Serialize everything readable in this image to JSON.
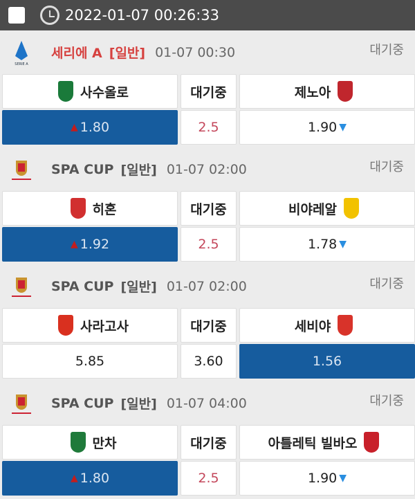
{
  "header": {
    "datetime": "2022-01-07 00:26:33"
  },
  "matches": [
    {
      "league": "세리에 A",
      "type": "[일반]",
      "time": "01-07 00:30",
      "status": "대기중",
      "highlight": true,
      "league_icon": "serie-a-logo",
      "home": "사수올로",
      "home_crest": "#1a7a3a",
      "draw_label": "대기중",
      "away": "제노아",
      "away_crest": "#c0262d",
      "home_odds": "1.80",
      "home_arrow": "up",
      "line": "2.5",
      "away_odds": "1.90",
      "away_arrow": "down",
      "selected": "home"
    },
    {
      "league": "SPA CUP",
      "type": "[일반]",
      "time": "01-07 02:00",
      "status": "대기중",
      "highlight": false,
      "league_icon": "copa-del-rey-logo",
      "home": "히혼",
      "home_crest": "#d12f2f",
      "draw_label": "대기중",
      "away": "비야레알",
      "away_crest": "#f2c200",
      "home_odds": "1.92",
      "home_arrow": "up",
      "line": "2.5",
      "away_odds": "1.78",
      "away_arrow": "down",
      "selected": "home"
    },
    {
      "league": "SPA CUP",
      "type": "[일반]",
      "time": "01-07 02:00",
      "status": "대기중",
      "highlight": false,
      "league_icon": "copa-del-rey-logo",
      "home": "사라고사",
      "home_crest": "#d9301f",
      "draw_label": "대기중",
      "away": "세비야",
      "away_crest": "#d8332a",
      "home_odds": "5.85",
      "home_arrow": "",
      "line": "3.60",
      "away_odds": "1.56",
      "away_arrow": "",
      "selected": "away"
    },
    {
      "league": "SPA CUP",
      "type": "[일반]",
      "time": "01-07 04:00",
      "status": "대기중",
      "highlight": false,
      "league_icon": "copa-del-rey-logo",
      "home": "만차",
      "home_crest": "#1f7a3a",
      "draw_label": "대기중",
      "away": "아틀레틱 빌바오",
      "away_crest": "#c8202a",
      "home_odds": "1.80",
      "home_arrow": "up",
      "line": "2.5",
      "away_odds": "1.90",
      "away_arrow": "down",
      "selected": "home"
    }
  ]
}
